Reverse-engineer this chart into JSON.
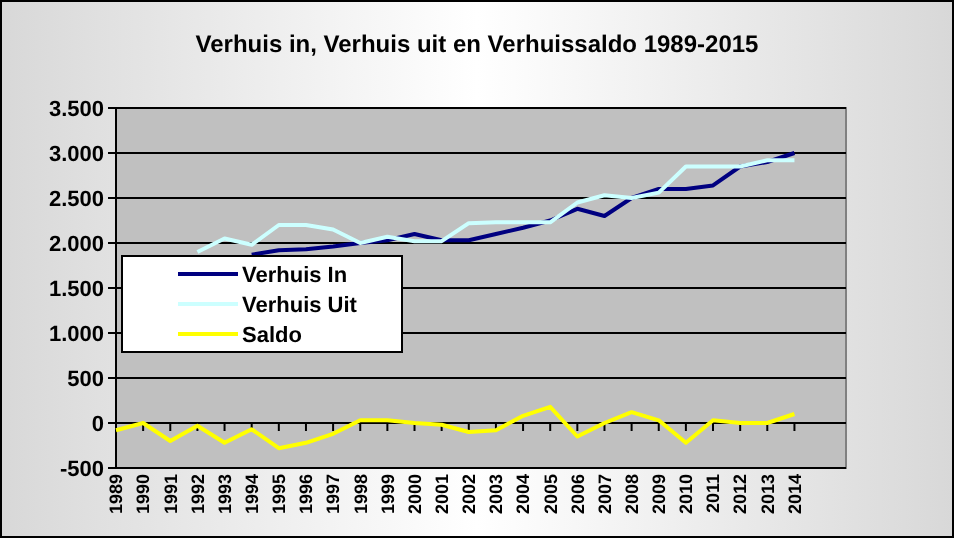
{
  "chart_data": {
    "type": "line",
    "title": "Verhuis in, Verhuis uit en Verhuissaldo 1989-2015",
    "categories": [
      "1989",
      "1990",
      "1991",
      "1992",
      "1993",
      "1994",
      "1995",
      "1996",
      "1997",
      "1998",
      "1999",
      "2000",
      "2001",
      "2002",
      "2003",
      "2004",
      "2005",
      "2006",
      "2007",
      "2008",
      "2009",
      "2010",
      "2011",
      "2012",
      "2013",
      "2014"
    ],
    "series": [
      {
        "name": "Verhuis In",
        "color": "#000080",
        "values": [
          null,
          null,
          null,
          null,
          null,
          1870,
          1920,
          1930,
          1960,
          2000,
          2030,
          2100,
          2030,
          2030,
          2100,
          2170,
          2250,
          2380,
          2300,
          2500,
          2600,
          2600,
          2640,
          2850,
          2900,
          3000
        ]
      },
      {
        "name": "Verhuis Uit",
        "color": "#ccffff",
        "values": [
          null,
          null,
          null,
          1900,
          2050,
          1980,
          2200,
          2200,
          2150,
          2000,
          2070,
          2020,
          2020,
          2220,
          2230,
          2230,
          2230,
          2450,
          2530,
          2500,
          2560,
          2850,
          2850,
          2850,
          2920,
          2920
        ]
      },
      {
        "name": "Saldo",
        "color": "#ffff00",
        "values": [
          -80,
          0,
          -200,
          -30,
          -220,
          -70,
          -280,
          -220,
          -120,
          30,
          30,
          0,
          -20,
          -100,
          -80,
          80,
          180,
          -150,
          0,
          120,
          30,
          -220,
          30,
          0,
          0,
          100
        ]
      }
    ],
    "ylim": [
      -500,
      3500
    ],
    "yticks": [
      {
        "value": -500,
        "label": "-500"
      },
      0,
      500,
      {
        "value": 1000,
        "label": "1.000"
      },
      {
        "value": 1500,
        "label": "1.500"
      },
      {
        "value": 2000,
        "label": "2.000"
      },
      {
        "value": 2500,
        "label": "2.500"
      },
      {
        "value": 3000,
        "label": "3.000"
      },
      {
        "value": 3500,
        "label": "3.500"
      }
    ],
    "grid": "y",
    "legend": "left",
    "marker": "none",
    "line_style": "solid"
  }
}
